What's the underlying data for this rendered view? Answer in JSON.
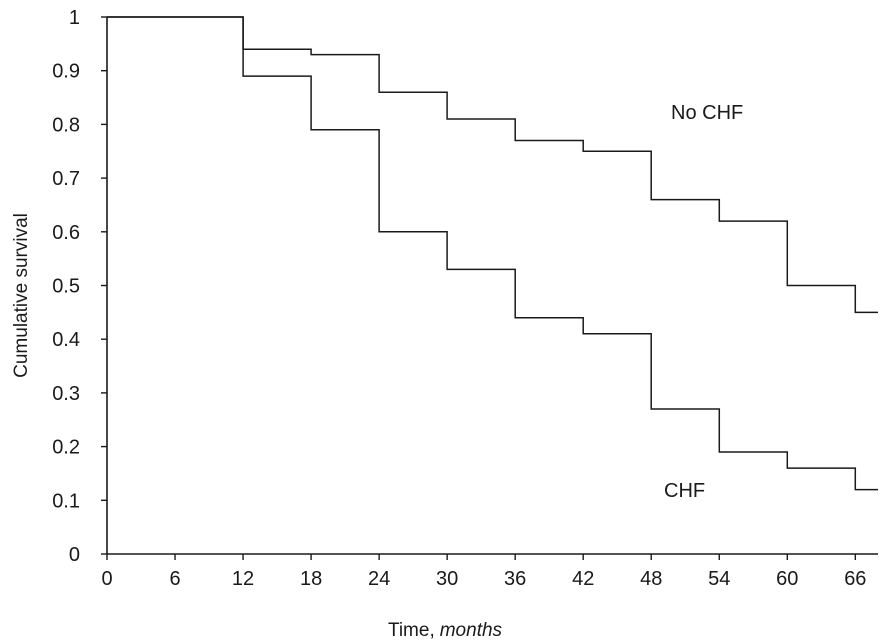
{
  "chart_data": {
    "type": "line",
    "title": "",
    "xlabel": "Time,",
    "xlabel_unit": "months",
    "ylabel": "Cumulative survival",
    "xlim": [
      0,
      68
    ],
    "ylim": [
      0,
      1
    ],
    "grid": false,
    "xticks": [
      "0",
      "6",
      "12",
      "18",
      "24",
      "30",
      "36",
      "42",
      "48",
      "54",
      "60",
      "66"
    ],
    "xtick_values": [
      0,
      6,
      12,
      18,
      24,
      30,
      36,
      42,
      48,
      54,
      60,
      66
    ],
    "yticks": [
      "0",
      "0.1",
      "0.2",
      "0.3",
      "0.4",
      "0.5",
      "0.6",
      "0.7",
      "0.8",
      "0.9",
      "1"
    ],
    "ytick_values": [
      0,
      0.1,
      0.2,
      0.3,
      0.4,
      0.5,
      0.6,
      0.7,
      0.8,
      0.9,
      1
    ],
    "series": [
      {
        "name": "No CHF",
        "step": true,
        "x": [
          0,
          12,
          18,
          24,
          30,
          36,
          42,
          48,
          54,
          60,
          66,
          68
        ],
        "y": [
          1.0,
          0.94,
          0.93,
          0.86,
          0.81,
          0.77,
          0.75,
          0.66,
          0.62,
          0.5,
          0.45,
          0.45
        ]
      },
      {
        "name": "CHF",
        "step": true,
        "x": [
          0,
          12,
          18,
          24,
          30,
          36,
          42,
          48,
          54,
          60,
          66,
          68
        ],
        "y": [
          1.0,
          0.89,
          0.79,
          0.6,
          0.53,
          0.44,
          0.41,
          0.27,
          0.19,
          0.16,
          0.12,
          0.12
        ]
      }
    ],
    "annotations": [
      {
        "text": "No CHF",
        "series": "No CHF"
      },
      {
        "text": "CHF",
        "series": "CHF"
      }
    ]
  }
}
